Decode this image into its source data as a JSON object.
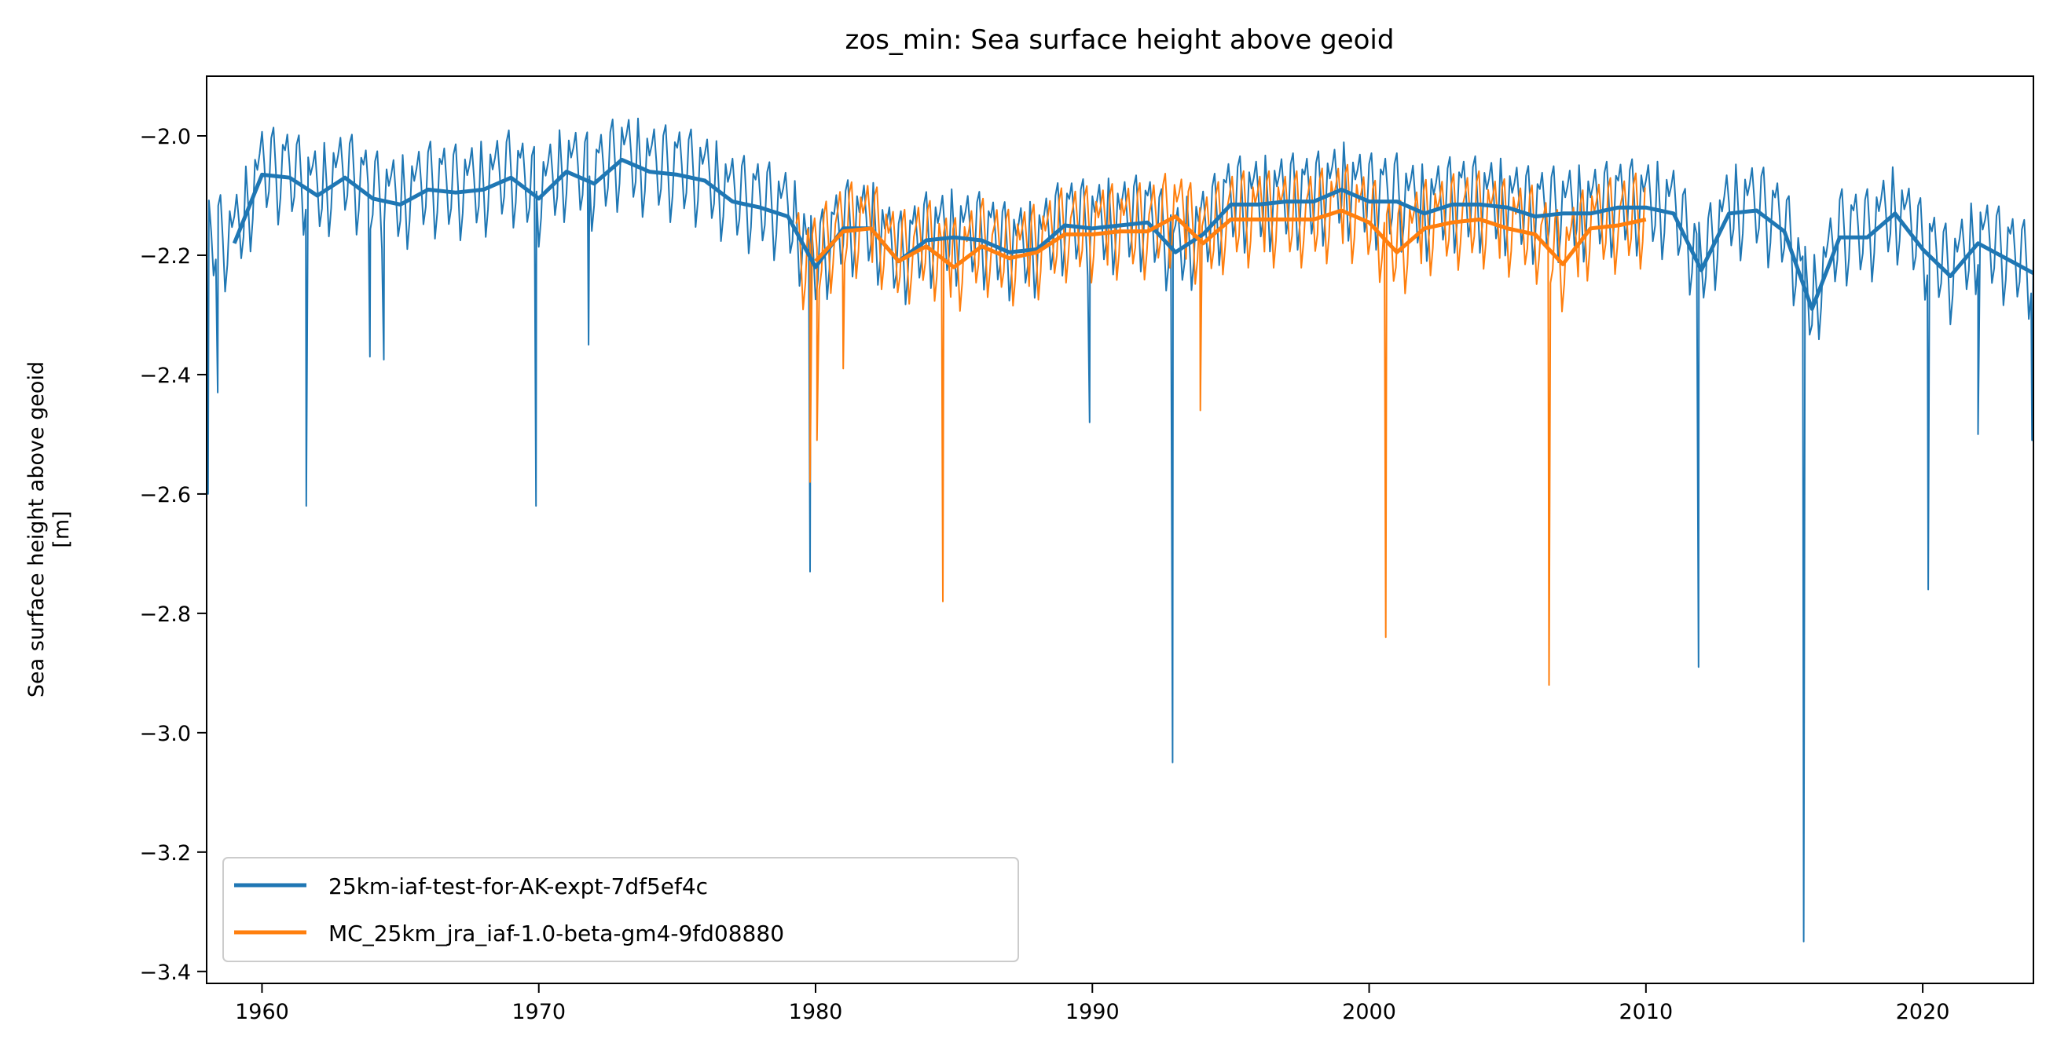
{
  "chart_data": {
    "type": "line",
    "title": "zos_min: Sea surface height above geoid",
    "xlabel": "",
    "ylabel": [
      "Sea surface height above geoid",
      "[m]"
    ],
    "xlim": [
      1958.0,
      2024.0
    ],
    "ylim": [
      -3.42,
      -1.9
    ],
    "xticks": [
      1960,
      1970,
      1980,
      1990,
      2000,
      2010,
      2020
    ],
    "xtick_labels": [
      "1960",
      "1970",
      "1980",
      "1990",
      "2000",
      "2010",
      "2020"
    ],
    "yticks": [
      -2.0,
      -2.2,
      -2.4,
      -2.6,
      -2.8,
      -3.0,
      -3.2,
      -3.4
    ],
    "ytick_labels": [
      "−2.0",
      "−2.2",
      "−2.4",
      "−2.6",
      "−2.8",
      "−3.0",
      "−3.2",
      "−3.4"
    ],
    "grid": false,
    "legend": {
      "placement": "lower-left"
    },
    "series": [
      {
        "name": "25km-iaf-test-for-AK-expt-7df5ef4c",
        "color": "#1f77b4",
        "annual_mean": {
          "x": [
            1959,
            1960,
            1961,
            1962,
            1963,
            1964,
            1965,
            1966,
            1967,
            1968,
            1969,
            1970,
            1971,
            1972,
            1973,
            1974,
            1975,
            1976,
            1977,
            1978,
            1979,
            1980,
            1981,
            1982,
            1983,
            1984,
            1985,
            1986,
            1987,
            1988,
            1989,
            1990,
            1991,
            1992,
            1993,
            1994,
            1995,
            1996,
            1997,
            1998,
            1999,
            2000,
            2001,
            2002,
            2003,
            2004,
            2005,
            2006,
            2007,
            2008,
            2009,
            2010,
            2011,
            2012,
            2013,
            2014,
            2015,
            2016,
            2017,
            2018,
            2019,
            2020,
            2021,
            2022,
            2023,
            2024
          ],
          "y": [
            -2.18,
            -2.065,
            -2.07,
            -2.1,
            -2.07,
            -2.105,
            -2.115,
            -2.09,
            -2.095,
            -2.09,
            -2.07,
            -2.105,
            -2.06,
            -2.08,
            -2.04,
            -2.06,
            -2.065,
            -2.075,
            -2.11,
            -2.12,
            -2.135,
            -2.22,
            -2.155,
            -2.155,
            -2.21,
            -2.175,
            -2.17,
            -2.175,
            -2.195,
            -2.19,
            -2.15,
            -2.155,
            -2.15,
            -2.145,
            -2.195,
            -2.165,
            -2.115,
            -2.115,
            -2.11,
            -2.11,
            -2.09,
            -2.11,
            -2.11,
            -2.13,
            -2.115,
            -2.115,
            -2.12,
            -2.135,
            -2.13,
            -2.13,
            -2.12,
            -2.12,
            -2.13,
            -2.225,
            -2.13,
            -2.125,
            -2.16,
            -2.29,
            -2.17,
            -2.17,
            -2.13,
            -2.19,
            -2.235,
            -2.18,
            -2.205,
            -2.23
          ]
        },
        "monthly_minima_spikes": {
          "x": [
            1958.05,
            1958.4,
            1961.6,
            1963.9,
            1964.4,
            1969.9,
            1971.8,
            1979.8,
            1989.9,
            1992.9,
            2011.9,
            2015.7,
            2020.2,
            2022.0,
            2023.95
          ],
          "y": [
            -2.6,
            -2.43,
            -2.62,
            -2.37,
            -2.375,
            -2.62,
            -2.35,
            -2.73,
            -2.48,
            -3.05,
            -2.89,
            -3.35,
            -2.76,
            -2.5,
            -2.51
          ]
        }
      },
      {
        "name": "MC_25km_jra_iaf-1.0-beta-gm4-9fd08880",
        "color": "#ff7f0e",
        "annual_mean": {
          "x": [
            1980,
            1981,
            1982,
            1983,
            1984,
            1985,
            1986,
            1987,
            1988,
            1989,
            1990,
            1991,
            1992,
            1993,
            1994,
            1995,
            1996,
            1997,
            1998,
            1999,
            2000,
            2001,
            2002,
            2003,
            2004,
            2005,
            2006,
            2007,
            2008,
            2009,
            2010
          ],
          "y": [
            -2.21,
            -2.16,
            -2.155,
            -2.21,
            -2.185,
            -2.22,
            -2.185,
            -2.205,
            -2.195,
            -2.165,
            -2.165,
            -2.16,
            -2.16,
            -2.135,
            -2.18,
            -2.14,
            -2.14,
            -2.14,
            -2.14,
            -2.125,
            -2.145,
            -2.195,
            -2.155,
            -2.145,
            -2.14,
            -2.155,
            -2.165,
            -2.215,
            -2.155,
            -2.15,
            -2.14
          ]
        },
        "monthly_minima_spikes": {
          "x": [
            1979.8,
            1980.05,
            1981.0,
            1984.6,
            1993.9,
            2000.6,
            2006.5
          ],
          "y": [
            -2.58,
            -2.51,
            -2.39,
            -2.78,
            -2.46,
            -2.84,
            -2.92
          ]
        },
        "monthly_range": [
          1979.3,
          2010.0
        ]
      }
    ]
  }
}
